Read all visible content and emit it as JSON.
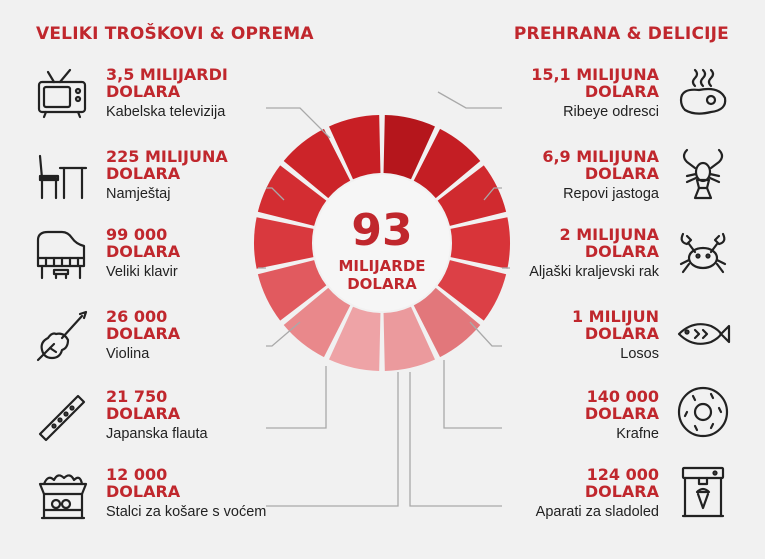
{
  "left_section": {
    "title": "VELIKI TROŠKOVI & OPREMA",
    "items": [
      {
        "amount": "3,5 MILIJARDI\nDOLARA",
        "label": "Kabelska televizija",
        "icon": "tv-icon"
      },
      {
        "amount": "225 MILIJUNA\nDOLARA",
        "label": "Namještaj",
        "icon": "furniture-icon"
      },
      {
        "amount": "99 000\nDOLARA",
        "label": "Veliki klavir",
        "icon": "piano-icon"
      },
      {
        "amount": "26 000\nDOLARA",
        "label": "Violina",
        "icon": "violin-icon"
      },
      {
        "amount": "21 750\nDOLARA",
        "label": "Japanska flauta",
        "icon": "flute-icon"
      },
      {
        "amount": "12 000\nDOLARA",
        "label": "Stalci za košare s voćem",
        "icon": "fruit-basket-icon"
      }
    ]
  },
  "right_section": {
    "title": "PREHRANA & DELICIJE",
    "items": [
      {
        "amount": "15,1 MILIJUNA\nDOLARA",
        "label": "Ribeye odresci",
        "icon": "steak-icon"
      },
      {
        "amount": "6,9 MILIJUNA\nDOLARA",
        "label": "Repovi jastoga",
        "icon": "lobster-icon"
      },
      {
        "amount": "2 MILIJUNA\nDOLARA",
        "label": "Aljaški kraljevski rak",
        "icon": "crab-icon"
      },
      {
        "amount": "1 MILIJUN\nDOLARA",
        "label": "Losos",
        "icon": "fish-icon"
      },
      {
        "amount": "140 000\nDOLARA",
        "label": "Krafne",
        "icon": "donut-icon"
      },
      {
        "amount": "124 000\nDOLARA",
        "label": "Aparati za sladoled",
        "icon": "ice-cream-machine-icon"
      }
    ]
  },
  "center": {
    "number": "93",
    "text": "MILIJARDE\nDOLARA"
  },
  "colors": {
    "accent": "#c0272d",
    "background": "#f1f1f1",
    "segments": [
      "#b5161c",
      "#c41e24",
      "#d02a2f",
      "#d83439",
      "#dc4046",
      "#e2777b",
      "#eb9a9d",
      "#eea3a6",
      "#e9888b",
      "#e15a5f",
      "#d9393e",
      "#d32d32",
      "#cc2429",
      "#c81f25"
    ]
  }
}
